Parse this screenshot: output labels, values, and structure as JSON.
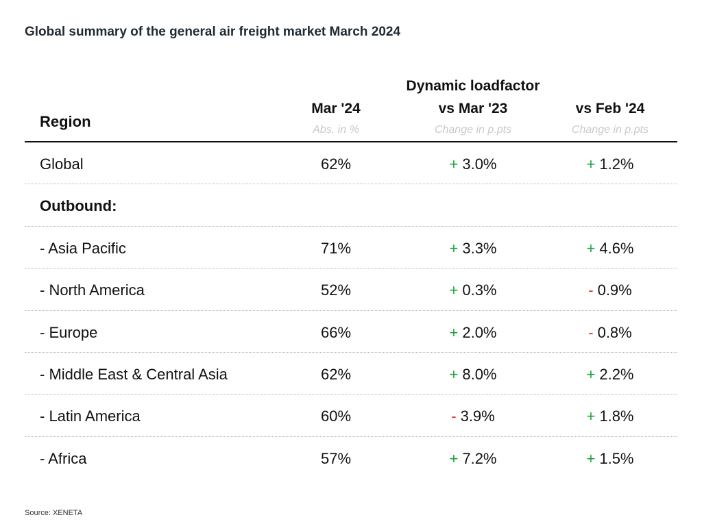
{
  "title": "Global summary of the general air freight market March 2024",
  "source": "Source: XENETA",
  "chart_data": {
    "type": "table",
    "title": "Global summary of the general air freight market March 2024",
    "group_header": "Dynamic loadfactor",
    "row_header": "Region",
    "columns": [
      {
        "label": "Mar '24",
        "sublabel": "Abs. in %"
      },
      {
        "label": "vs Mar '23",
        "sublabel": "Change in p.pts"
      },
      {
        "label": "vs Feb '24",
        "sublabel": "Change in p.pts"
      }
    ],
    "rows": [
      {
        "label": "Global",
        "section": false,
        "values": [
          "62%",
          "3.0%",
          "1.2%"
        ],
        "signs": [
          "",
          "+",
          "+"
        ]
      },
      {
        "label": "Outbound:",
        "section": true,
        "values": [
          "",
          "",
          ""
        ],
        "signs": [
          "",
          "",
          ""
        ]
      },
      {
        "label": " - Asia Pacific",
        "section": false,
        "values": [
          "71%",
          "3.3%",
          "4.6%"
        ],
        "signs": [
          "",
          "+",
          "+"
        ]
      },
      {
        "label": " - North America",
        "section": false,
        "values": [
          "52%",
          "0.3%",
          "0.9%"
        ],
        "signs": [
          "",
          "+",
          "-"
        ]
      },
      {
        "label": " - Europe",
        "section": false,
        "values": [
          "66%",
          "2.0%",
          "0.8%"
        ],
        "signs": [
          "",
          "+",
          "-"
        ]
      },
      {
        "label": " - Middle East & Central Asia",
        "section": false,
        "values": [
          "62%",
          "8.0%",
          "2.2%"
        ],
        "signs": [
          "",
          "+",
          "+"
        ]
      },
      {
        "label": " - Latin America",
        "section": false,
        "values": [
          "60%",
          "3.9%",
          "1.8%"
        ],
        "signs": [
          "",
          "-",
          "+"
        ]
      },
      {
        "label": " - Africa",
        "section": false,
        "values": [
          "57%",
          "7.2%",
          "1.5%"
        ],
        "signs": [
          "",
          "+",
          "+"
        ]
      }
    ],
    "colors": {
      "positive": "#1aa33a",
      "negative": "#e0281e",
      "sublabel": "#c9c9c9"
    }
  }
}
